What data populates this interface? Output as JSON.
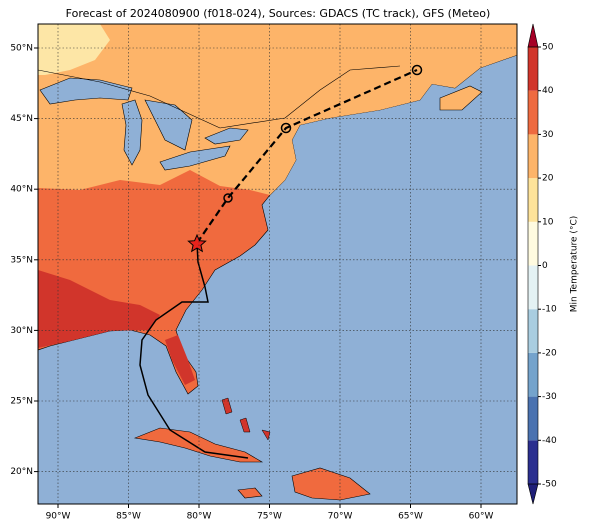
{
  "title": "Forecast of 2024080900 (f018-024), Sources: GDACS (TC track), GFS (Meteo)",
  "map": {
    "lat_ticks": [
      {
        "value": 50,
        "label": "50°N"
      },
      {
        "value": 45,
        "label": "45°N"
      },
      {
        "value": 40,
        "label": "40°N"
      },
      {
        "value": 35,
        "label": "35°N"
      },
      {
        "value": 30,
        "label": "30°N"
      },
      {
        "value": 25,
        "label": "25°N"
      },
      {
        "value": 20,
        "label": "20°N"
      }
    ],
    "lon_ticks": [
      {
        "value": -90,
        "label": "90°W"
      },
      {
        "value": -85,
        "label": "85°W"
      },
      {
        "value": -80,
        "label": "80°W"
      },
      {
        "value": -75,
        "label": "75°W"
      },
      {
        "value": -70,
        "label": "70°W"
      },
      {
        "value": -65,
        "label": "65°W"
      },
      {
        "value": -60,
        "label": "60°W"
      }
    ],
    "grid": true
  },
  "colorbar": {
    "label": "Min Temperature (°C)",
    "ticks": [
      -50,
      -40,
      -30,
      -20,
      -10,
      0,
      10,
      20,
      30,
      40,
      50
    ],
    "colors": [
      "#2b2f8f",
      "#4a72b0",
      "#74a3cc",
      "#a9cde0",
      "#e4f2f4",
      "#fffbe0",
      "#fee39a",
      "#fdb469",
      "#ee6a40",
      "#d1352b"
    ],
    "under_color": "#1f1f78",
    "over_color": "#a50026"
  }
}
